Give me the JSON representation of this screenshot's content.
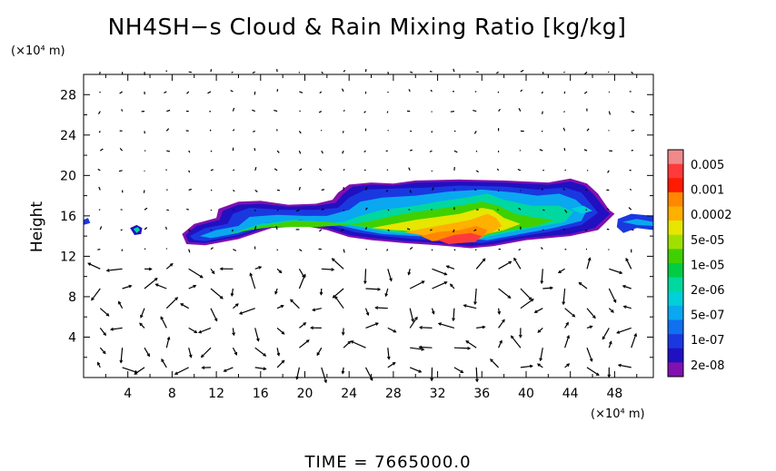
{
  "chart_data": {
    "type": "heatmap",
    "title": "NH4SH−s Cloud & Rain Mixing Ratio [kg/kg]",
    "x_unit_label": "(×10⁴ m)",
    "y_unit_label": "(×10⁴ m)",
    "ylabel": "Height",
    "xlim": [
      0,
      51.5
    ],
    "ylim": [
      0,
      30
    ],
    "x_ticks": [
      4,
      8,
      12,
      16,
      20,
      24,
      28,
      32,
      36,
      40,
      44,
      48
    ],
    "y_ticks": [
      4,
      8,
      12,
      16,
      20,
      24,
      28
    ],
    "footer": "TIME = 7665000.0",
    "colorbar": {
      "labels": [
        "0.005",
        "0.001",
        "0.0002",
        "5e-05",
        "1e-05",
        "2e-06",
        "5e-07",
        "1e-07",
        "2e-08"
      ],
      "colors": [
        "#f08a8a",
        "#ff3a3a",
        "#ff1a00",
        "#ff8800",
        "#ffb000",
        "#e6e600",
        "#a0e000",
        "#40d000",
        "#00cc44",
        "#00d8a0",
        "#00d0d8",
        "#0aa8f0",
        "#1070f0",
        "#1a38e0",
        "#2010c0",
        "#8010b0"
      ]
    },
    "cloud_layer": {
      "x_range": [
        9,
        51.5
      ],
      "height_range": [
        12.8,
        19.2
      ],
      "max_value_location": [
        35,
        14
      ]
    },
    "wind_vectors": "velocity arrows over full domain"
  }
}
